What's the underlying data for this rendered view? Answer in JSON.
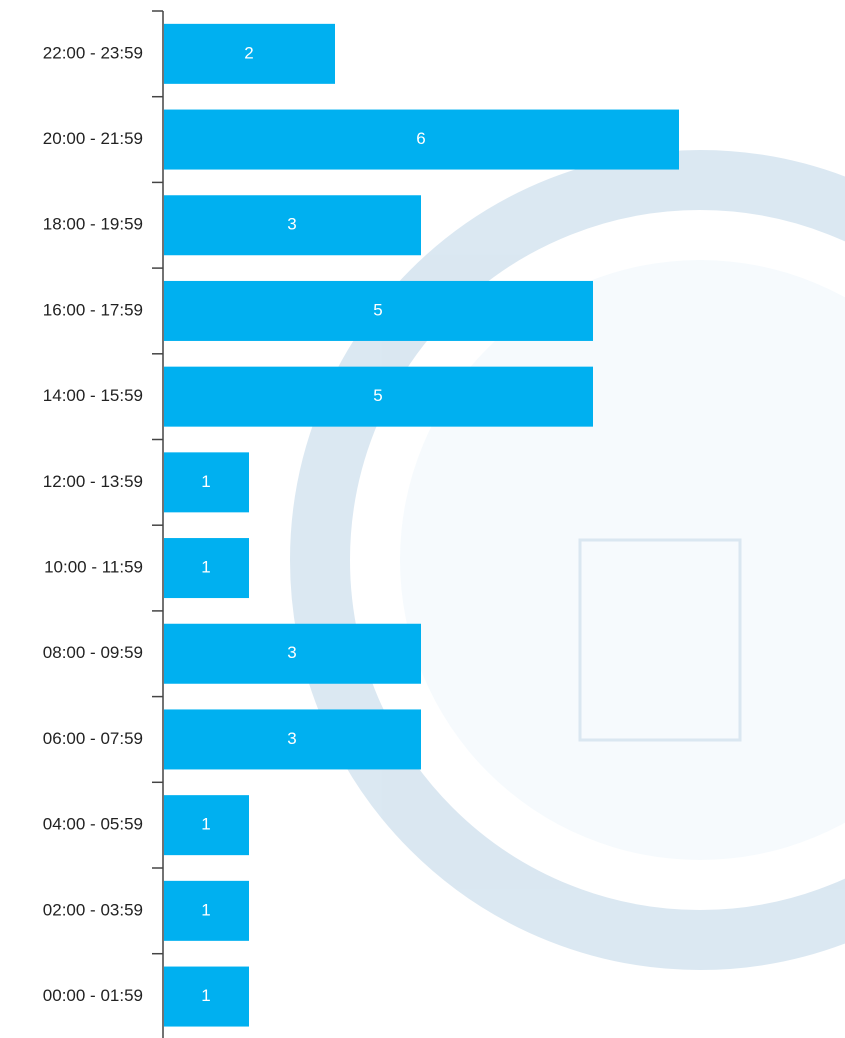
{
  "chart_data": {
    "type": "bar",
    "orientation": "horizontal",
    "categories": [
      "22:00 - 23:59",
      "20:00 - 21:59",
      "18:00 - 19:59",
      "16:00 - 17:59",
      "14:00 - 15:59",
      "12:00 - 13:59",
      "10:00 - 11:59",
      "08:00 - 09:59",
      "06:00 - 07:59",
      "04:00 - 05:59",
      "02:00 - 03:59",
      "00:00 - 01:59"
    ],
    "values": [
      2,
      6,
      3,
      5,
      5,
      1,
      1,
      3,
      3,
      1,
      1,
      1
    ],
    "color": "#00b0f0"
  }
}
